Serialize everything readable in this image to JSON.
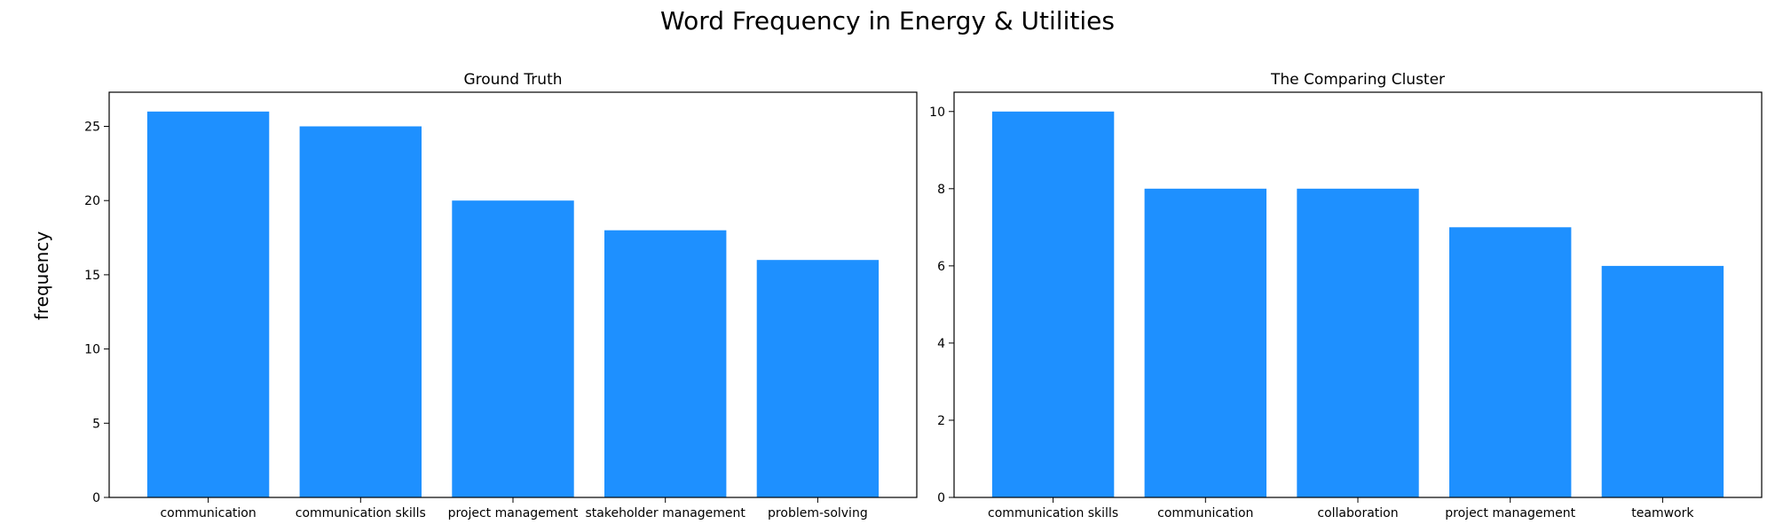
{
  "figure": {
    "title": "Word Frequency in Energy & Utilities",
    "shared_ylabel": "frequency",
    "bar_color": "#1e90ff"
  },
  "chart_data": [
    {
      "type": "bar",
      "title": "Ground Truth",
      "categories": [
        "communication",
        "communication skills",
        "project management",
        "stakeholder management",
        "problem-solving"
      ],
      "values": [
        26,
        25,
        20,
        18,
        16
      ],
      "ylim": [
        0,
        27.3
      ],
      "yticks": [
        0,
        5,
        10,
        15,
        20,
        25
      ],
      "grid": false
    },
    {
      "type": "bar",
      "title": "The Comparing Cluster",
      "categories": [
        "communication skills",
        "communication",
        "collaboration",
        "project management",
        "teamwork"
      ],
      "values": [
        10,
        8,
        8,
        7,
        6
      ],
      "ylim": [
        0,
        10.5
      ],
      "yticks": [
        0,
        2,
        4,
        6,
        8,
        10
      ],
      "grid": false
    }
  ]
}
